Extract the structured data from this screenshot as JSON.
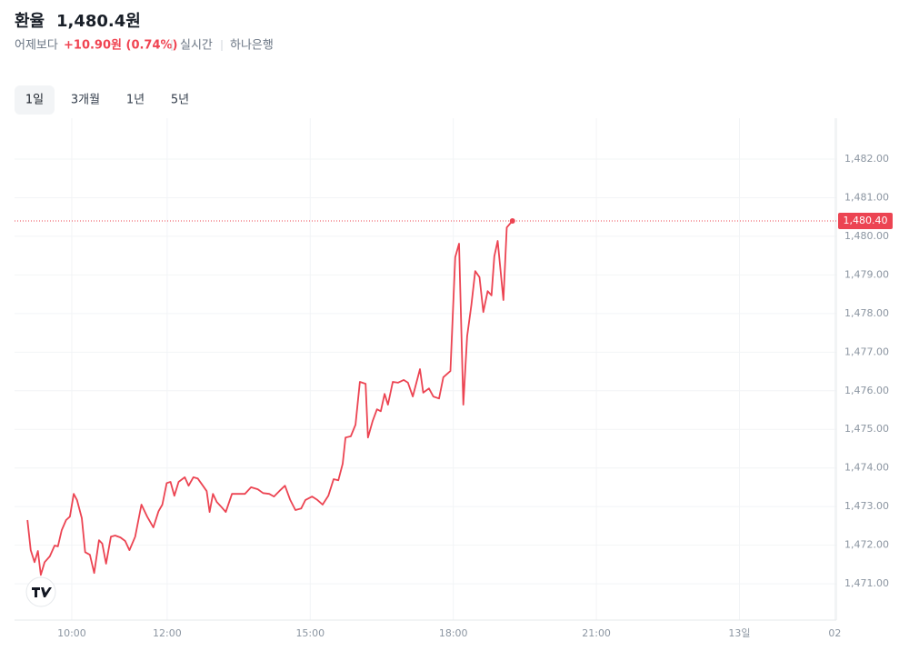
{
  "header": {
    "title": "환율",
    "price": "1,480.4원",
    "compare": "어제보다",
    "change": "+10.90원 (0.74%)",
    "mode": "실시간",
    "source": "하나은행"
  },
  "tabs": [
    "1일",
    "3개월",
    "1년",
    "5년"
  ],
  "chart_data": {
    "type": "line",
    "color": "#ec4452",
    "x": [
      9.07,
      9.14,
      9.22,
      9.29,
      9.35,
      9.43,
      9.54,
      9.64,
      9.71,
      9.79,
      9.88,
      9.96,
      10.04,
      10.11,
      10.21,
      10.28,
      10.38,
      10.47,
      10.57,
      10.64,
      10.72,
      10.82,
      10.91,
      11.02,
      11.12,
      11.21,
      11.33,
      11.46,
      11.58,
      11.71,
      11.82,
      11.9,
      11.99,
      12.07,
      12.15,
      12.24,
      12.37,
      12.45,
      12.55,
      12.64,
      12.75,
      12.83,
      12.89,
      12.96,
      13.04,
      13.13,
      13.23,
      13.36,
      13.48,
      13.63,
      13.76,
      13.9,
      14.01,
      14.14,
      14.24,
      14.35,
      14.47,
      14.58,
      14.69,
      14.81,
      14.9,
      15.04,
      15.15,
      15.26,
      15.38,
      15.49,
      15.59,
      15.68,
      15.74,
      15.85,
      15.95,
      16.04,
      16.16,
      16.21,
      16.31,
      16.4,
      16.48,
      16.56,
      16.63,
      16.73,
      16.84,
      16.96,
      17.05,
      17.15,
      17.3,
      17.37,
      17.49,
      17.58,
      17.7,
      17.79,
      17.94,
      18.04,
      18.12,
      18.21,
      18.29,
      18.38,
      18.46,
      18.55,
      18.63,
      18.72,
      18.8,
      18.86,
      18.93,
      19.05,
      19.12,
      19.24
    ],
    "values": [
      1472.65,
      1471.87,
      1471.56,
      1471.85,
      1471.23,
      1471.56,
      1471.71,
      1471.99,
      1471.97,
      1472.39,
      1472.65,
      1472.74,
      1473.33,
      1473.17,
      1472.7,
      1471.82,
      1471.75,
      1471.28,
      1472.13,
      1472.04,
      1471.52,
      1472.22,
      1472.25,
      1472.2,
      1472.11,
      1471.87,
      1472.22,
      1473.05,
      1472.74,
      1472.46,
      1472.88,
      1473.05,
      1473.61,
      1473.64,
      1473.28,
      1473.64,
      1473.76,
      1473.54,
      1473.76,
      1473.73,
      1473.54,
      1473.4,
      1472.86,
      1473.33,
      1473.12,
      1473.0,
      1472.86,
      1473.33,
      1473.33,
      1473.33,
      1473.5,
      1473.45,
      1473.35,
      1473.33,
      1473.26,
      1473.4,
      1473.54,
      1473.17,
      1472.91,
      1472.95,
      1473.17,
      1473.26,
      1473.17,
      1473.05,
      1473.28,
      1473.71,
      1473.68,
      1474.11,
      1474.79,
      1474.82,
      1475.12,
      1476.23,
      1476.18,
      1474.79,
      1475.22,
      1475.52,
      1475.47,
      1475.92,
      1475.64,
      1476.23,
      1476.21,
      1476.28,
      1476.21,
      1475.85,
      1476.56,
      1475.95,
      1476.06,
      1475.85,
      1475.8,
      1476.35,
      1476.51,
      1479.46,
      1479.81,
      1475.64,
      1477.41,
      1478.23,
      1479.1,
      1478.94,
      1478.04,
      1478.58,
      1478.47,
      1479.48,
      1479.88,
      1478.35,
      1480.23,
      1480.4
    ],
    "current": {
      "value": 1480.4,
      "label": "1,480.40"
    },
    "xlim": [
      8.8,
      26.03
    ],
    "xticks": [
      {
        "value": 10,
        "label": "10:00"
      },
      {
        "value": 12,
        "label": "12:00"
      },
      {
        "value": 15,
        "label": "15:00"
      },
      {
        "value": 18,
        "label": "18:00"
      },
      {
        "value": 21,
        "label": "21:00"
      },
      {
        "value": 24,
        "label": "13일"
      },
      {
        "value": 26,
        "label": "02"
      }
    ],
    "ylim": [
      1470.06,
      1483.06
    ],
    "yticks": [
      {
        "value": 1471,
        "label": "1,471.00"
      },
      {
        "value": 1472,
        "label": "1,472.00"
      },
      {
        "value": 1473,
        "label": "1,473.00"
      },
      {
        "value": 1474,
        "label": "1,474.00"
      },
      {
        "value": 1475,
        "label": "1,475.00"
      },
      {
        "value": 1476,
        "label": "1,476.00"
      },
      {
        "value": 1477,
        "label": "1,477.00"
      },
      {
        "value": 1478,
        "label": "1,478.00"
      },
      {
        "value": 1479,
        "label": "1,479.00"
      },
      {
        "value": 1480,
        "label": "1,480.00"
      },
      {
        "value": 1481,
        "label": "1,481.00"
      },
      {
        "value": 1482,
        "label": "1,482.00"
      }
    ],
    "grid": true
  }
}
